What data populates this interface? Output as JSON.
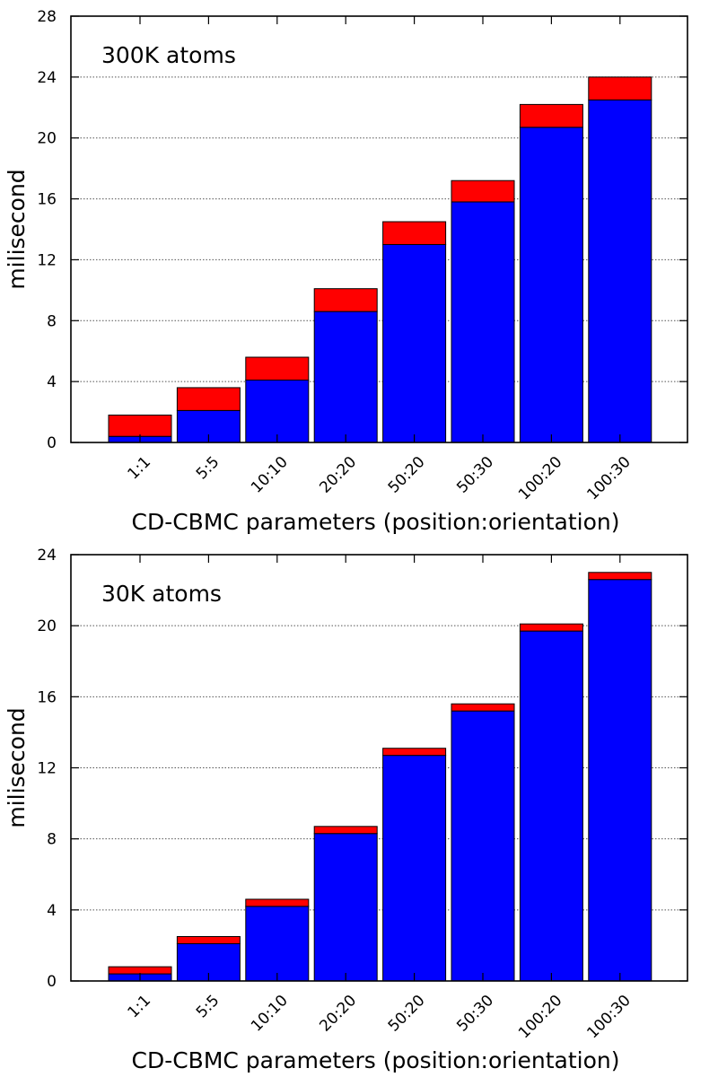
{
  "colors": {
    "lower_segment": "#0000ff",
    "upper_segment": "#ff0000",
    "bar_outline": "#000000",
    "grid": "#555555"
  },
  "chart_data": [
    {
      "type": "bar",
      "stacked": true,
      "annotation": "300K atoms",
      "xlabel": "CD-CBMC parameters (position:orientation)",
      "ylabel": "milisecond",
      "ylim": [
        0,
        28
      ],
      "yticks": [
        0,
        4,
        8,
        12,
        16,
        20,
        24,
        28
      ],
      "grid": "horizontal dotted",
      "legend": "none",
      "categories": [
        "1:1",
        "5:5",
        "10:10",
        "20:20",
        "50:20",
        "50:30",
        "100:20",
        "100:30"
      ],
      "series": [
        {
          "color": "#0000ff",
          "values": [
            0.4,
            2.1,
            4.1,
            8.6,
            13.0,
            15.8,
            20.7,
            22.5
          ]
        },
        {
          "color": "#ff0000",
          "values": [
            1.4,
            1.5,
            1.5,
            1.5,
            1.5,
            1.4,
            1.5,
            1.5
          ]
        }
      ]
    },
    {
      "type": "bar",
      "stacked": true,
      "annotation": "30K atoms",
      "xlabel": "CD-CBMC parameters (position:orientation)",
      "ylabel": "milisecond",
      "ylim": [
        0,
        24
      ],
      "yticks": [
        0,
        4,
        8,
        12,
        16,
        20,
        24
      ],
      "grid": "horizontal dotted",
      "legend": "none",
      "categories": [
        "1:1",
        "5:5",
        "10:10",
        "20:20",
        "50:20",
        "50:30",
        "100:20",
        "100:30"
      ],
      "series": [
        {
          "color": "#0000ff",
          "values": [
            0.4,
            2.1,
            4.2,
            8.3,
            12.7,
            15.2,
            19.7,
            22.6
          ]
        },
        {
          "color": "#ff0000",
          "values": [
            0.4,
            0.4,
            0.4,
            0.4,
            0.4,
            0.4,
            0.4,
            0.4
          ]
        }
      ]
    }
  ]
}
